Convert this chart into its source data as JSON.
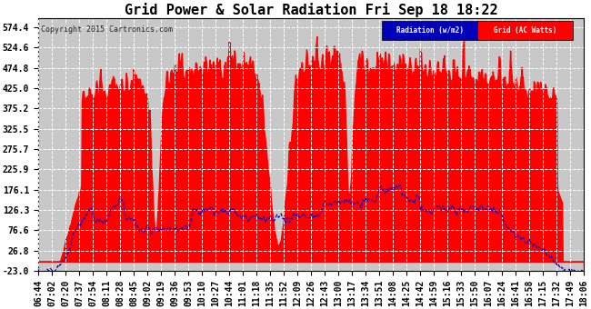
{
  "title": "Grid Power & Solar Radiation Fri Sep 18 18:22",
  "copyright": "Copyright 2015 Cartronics.com",
  "yticks": [
    574.4,
    524.6,
    474.8,
    425.0,
    375.2,
    325.5,
    275.7,
    225.9,
    176.1,
    126.3,
    76.6,
    26.8,
    -23.0
  ],
  "ylim": [
    -23.0,
    597.0
  ],
  "legend_labels": [
    "Radiation (w/m2)",
    "Grid (AC Watts)"
  ],
  "bg_color": "#ffffff",
  "plot_bg_color": "#c8c8c8",
  "grid_color": "#ffffff",
  "solar_fill_color": "#ff0000",
  "radiation_line_color": "#0000cc",
  "title_fontsize": 11,
  "tick_label_fontsize": 7,
  "xtick_labels": [
    "06:44",
    "07:02",
    "07:20",
    "07:37",
    "07:54",
    "08:11",
    "08:28",
    "08:45",
    "09:02",
    "09:19",
    "09:36",
    "09:53",
    "10:10",
    "10:27",
    "10:44",
    "11:01",
    "11:18",
    "11:35",
    "11:52",
    "12:09",
    "12:26",
    "12:43",
    "13:00",
    "13:17",
    "13:34",
    "13:51",
    "14:08",
    "14:25",
    "14:42",
    "14:59",
    "15:16",
    "15:33",
    "15:50",
    "16:07",
    "16:24",
    "16:41",
    "16:58",
    "17:15",
    "17:32",
    "17:49",
    "18:06"
  ]
}
